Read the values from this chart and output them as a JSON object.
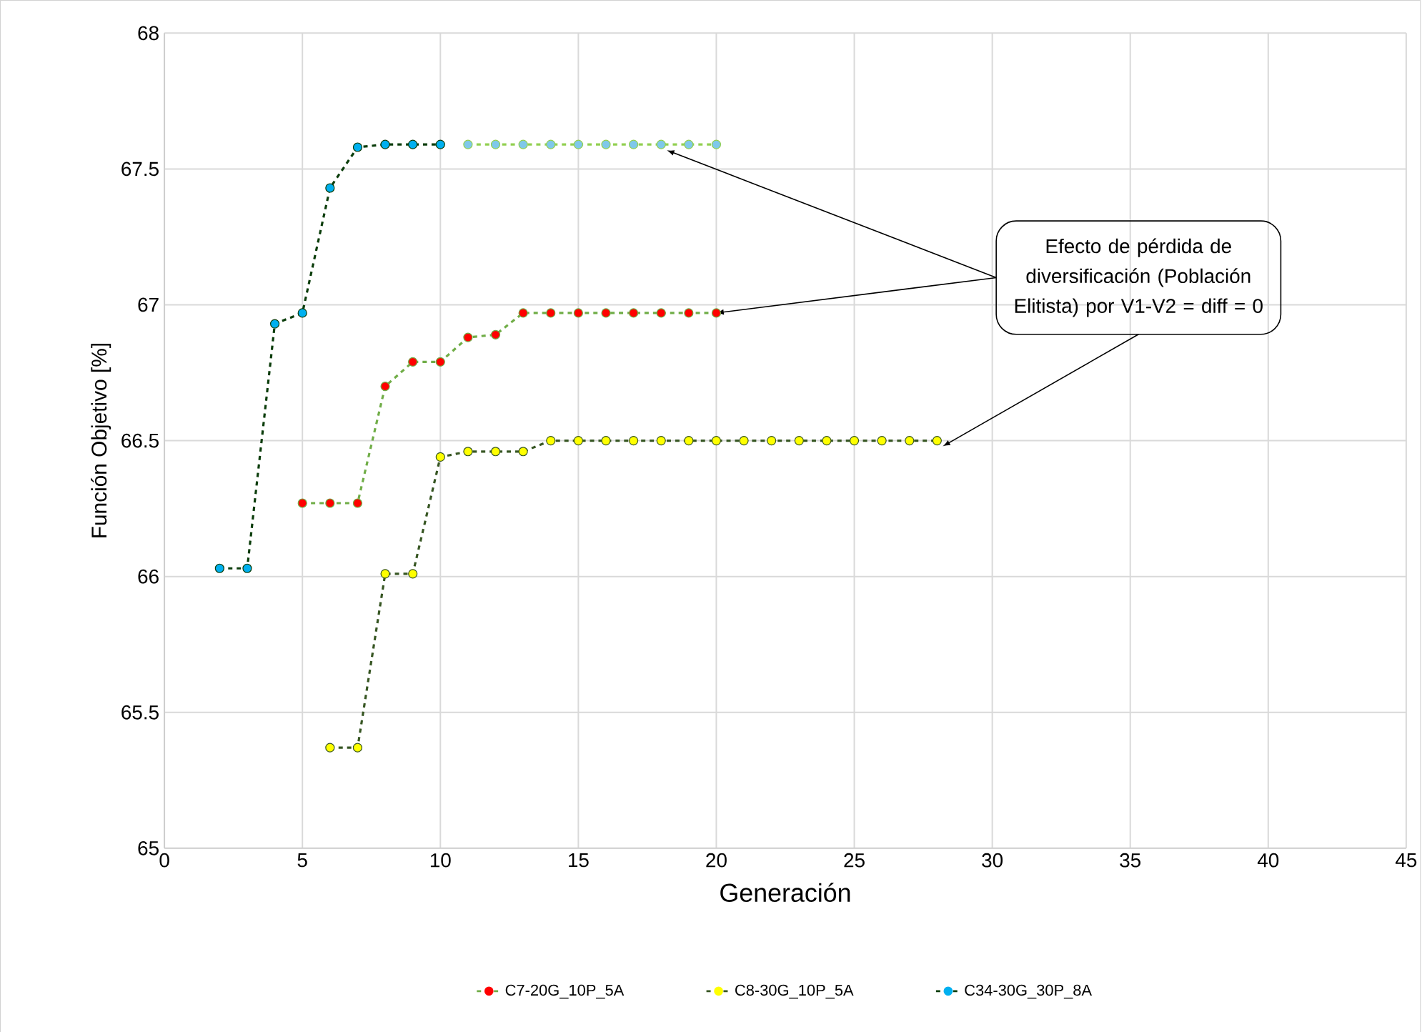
{
  "chart_data": {
    "type": "line",
    "xlabel": "Generación",
    "ylabel": "Función Objetivo [%]",
    "xlim": [
      0,
      45
    ],
    "xticks": [
      0,
      5,
      10,
      15,
      20,
      25,
      30,
      35,
      40,
      45
    ],
    "ylim": [
      65,
      68
    ],
    "yticks": [
      65,
      65.5,
      66,
      66.5,
      67,
      67.5,
      68
    ],
    "grid": true,
    "legend": "bottom",
    "marker": "circle",
    "line_style": "dashed",
    "series": [
      {
        "name": "C7-20G_10P_5A",
        "color": "#70ad47",
        "x": [
          5,
          6,
          7,
          8,
          9,
          10,
          11,
          12,
          13,
          14,
          15,
          16,
          17,
          18,
          19,
          20
        ],
        "values": [
          66.27,
          66.27,
          66.27,
          66.7,
          66.79,
          66.79,
          66.88,
          66.89,
          66.97,
          66.97,
          66.97,
          66.97,
          66.97,
          66.97,
          66.97,
          66.97
        ],
        "colors": [
          "#ff0000",
          "#ff0000",
          "#ff0000",
          "#ff0000",
          "#ff0000",
          "#ff0000",
          "#ff0000",
          "#ff0000",
          "#ff0000",
          "#ff0000",
          "#ff0000",
          "#ff0000",
          "#ff0000",
          "#ff0000",
          "#ff0000",
          "#ff0000"
        ]
      },
      {
        "name": "C8-30G_10P_5A",
        "color": "#375623",
        "x": [
          6,
          7,
          8,
          9,
          10,
          11,
          12,
          13,
          14,
          15,
          16,
          17,
          18,
          19,
          20,
          21,
          22,
          23,
          24,
          25,
          26,
          27,
          28
        ],
        "values": [
          65.37,
          65.37,
          66.01,
          66.01,
          66.44,
          66.46,
          66.46,
          66.46,
          66.5,
          66.5,
          66.5,
          66.5,
          66.5,
          66.5,
          66.5,
          66.5,
          66.5,
          66.5,
          66.5,
          66.5,
          66.5,
          66.5,
          66.5
        ],
        "colors": [
          "#ffff00",
          "#ffff00",
          "#ffff00",
          "#ffff00",
          "#ffff00",
          "#ffff00",
          "#ffff00",
          "#ffff00",
          "#ffff00",
          "#ffff00",
          "#ffff00",
          "#ffff00",
          "#ffff00",
          "#ffff00",
          "#ffff00",
          "#ffff00",
          "#ffff00",
          "#ffff00",
          "#ffff00",
          "#ffff00",
          "#ffff00",
          "#ffff00",
          "#ffff00"
        ]
      },
      {
        "name": "C34-30G_30P_8A",
        "color": "#0b3d0b",
        "x": [
          2,
          3,
          4,
          5,
          6,
          7,
          8,
          9,
          10
        ],
        "values": [
          66.03,
          66.03,
          66.93,
          66.97,
          67.43,
          67.58,
          67.59,
          67.59,
          67.59
        ],
        "colors": [
          "#00b0f0",
          "#00b0f0",
          "#00b0f0",
          "#00b0f0",
          "#00b0f0",
          "#00b0f0",
          "#00b0f0",
          "#00b0f0",
          "#00b0f0"
        ]
      },
      {
        "color": "#92d050",
        "x": [
          11,
          12,
          13,
          14,
          15,
          16,
          17,
          18,
          19,
          20
        ],
        "values": [
          67.59,
          67.59,
          67.59,
          67.59,
          67.59,
          67.59,
          67.59,
          67.59,
          67.59,
          67.59
        ],
        "colors": [
          "#7fc8ea",
          "#7fc8ea",
          "#7fc8ea",
          "#7fc8ea",
          "#7fc8ea",
          "#7fc8ea",
          "#7fc8ea",
          "#7fc8ea",
          "#7fc8ea",
          "#7fc8ea"
        ]
      }
    ],
    "annotations": [
      {
        "text": "Efecto de pérdida de diversificación (Población Elitista) por V1-V2 = diff = 0",
        "x": 20,
        "y": 66.97
      }
    ]
  }
}
